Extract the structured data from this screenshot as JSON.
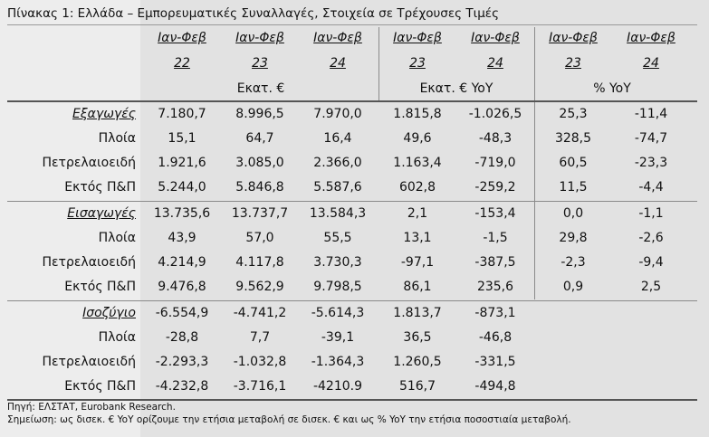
{
  "title": "Πίνακας 1: Ελλάδα – Εμπορευματικές Συναλλαγές, Στοιχεία σε Τρέχουσες Τιμές",
  "header": {
    "periods": [
      "Ιαν-Φεβ",
      "Ιαν-Φεβ",
      "Ιαν-Φεβ",
      "Ιαν-Φεβ",
      "Ιαν-Φεβ",
      "Ιαν-Φεβ",
      "Ιαν-Φεβ"
    ],
    "years": [
      "22",
      "23",
      "24",
      "23",
      "24",
      "23",
      "24"
    ],
    "units": [
      "Εκατ. €",
      "Εκατ. € YoY",
      "% YoY"
    ]
  },
  "sections": [
    {
      "name": "Εξαγωγές",
      "rows": [
        {
          "label": "Εξαγωγές",
          "values": [
            "7.180,7",
            "8.996,5",
            "7.970,0",
            "1.815,8",
            "-1.026,5",
            "25,3",
            "-11,4"
          ]
        },
        {
          "label": "Πλοία",
          "values": [
            "15,1",
            "64,7",
            "16,4",
            "49,6",
            "-48,3",
            "328,5",
            "-74,7"
          ]
        },
        {
          "label": "Πετρελαιοειδή",
          "values": [
            "1.921,6",
            "3.085,0",
            "2.366,0",
            "1.163,4",
            "-719,0",
            "60,5",
            "-23,3"
          ]
        },
        {
          "label": "Εκτός Π&Π",
          "values": [
            "5.244,0",
            "5.846,8",
            "5.587,6",
            "602,8",
            "-259,2",
            "11,5",
            "-4,4"
          ]
        }
      ]
    },
    {
      "name": "Εισαγωγές",
      "rows": [
        {
          "label": "Εισαγωγές",
          "values": [
            "13.735,6",
            "13.737,7",
            "13.584,3",
            "2,1",
            "-153,4",
            "0,0",
            "-1,1"
          ]
        },
        {
          "label": "Πλοία",
          "values": [
            "43,9",
            "57,0",
            "55,5",
            "13,1",
            "-1,5",
            "29,8",
            "-2,6"
          ]
        },
        {
          "label": "Πετρελαιοειδή",
          "values": [
            "4.214,9",
            "4.117,8",
            "3.730,3",
            "-97,1",
            "-387,5",
            "-2,3",
            "-9,4"
          ]
        },
        {
          "label": "Εκτός Π&Π",
          "values": [
            "9.476,8",
            "9.562,9",
            "9.798,5",
            "86,1",
            "235,6",
            "0,9",
            "2,5"
          ]
        }
      ]
    },
    {
      "name": "Ισοζύγιο",
      "rows": [
        {
          "label": "Ισοζύγιο",
          "values": [
            "-6.554,9",
            "-4.741,2",
            "-5.614,3",
            "1.813,7",
            "-873,1",
            "",
            ""
          ]
        },
        {
          "label": "Πλοία",
          "values": [
            "-28,8",
            "7,7",
            "-39,1",
            "36,5",
            "-46,8",
            "",
            ""
          ]
        },
        {
          "label": "Πετρελαιοειδή",
          "values": [
            "-2.293,3",
            "-1.032,8",
            "-1.364,3",
            "1.260,5",
            "-331,5",
            "",
            ""
          ]
        },
        {
          "label": "Εκτός Π&Π",
          "values": [
            "-4.232,8",
            "-3.716,1",
            "-4210.9",
            "516,7",
            "-494,8",
            "",
            ""
          ]
        }
      ]
    }
  ],
  "footnotes": {
    "source": "Πηγή: ΕΛΣΤΑΤ, Eurobank Research.",
    "note": "Σημείωση: ως δισεκ. € YoY ορίζουμε την ετήσια μεταβολή σε δισεκ. € και ως % YoY την ετήσια ποσοστιαία μεταβολή."
  }
}
